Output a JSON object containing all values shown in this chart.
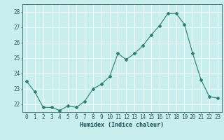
{
  "x": [
    0,
    1,
    2,
    3,
    4,
    5,
    6,
    7,
    8,
    9,
    10,
    11,
    12,
    13,
    14,
    15,
    16,
    17,
    18,
    19,
    20,
    21,
    22,
    23
  ],
  "y": [
    23.5,
    22.8,
    21.8,
    21.8,
    21.6,
    21.9,
    21.8,
    22.2,
    23.0,
    23.3,
    23.8,
    25.3,
    24.9,
    25.3,
    25.8,
    26.5,
    27.1,
    27.9,
    27.9,
    27.2,
    25.3,
    23.6,
    22.5,
    22.4
  ],
  "line_color": "#2e7d6e",
  "marker": "D",
  "marker_size": 2,
  "bg_color": "#c8eeee",
  "grid_color": "#ffffff",
  "tick_color": "#2e5f5f",
  "xlabel": "Humidex (Indice chaleur)",
  "xlabel_color": "#1a4f4f",
  "ylim": [
    21.5,
    28.5
  ],
  "xlim": [
    -0.5,
    23.5
  ],
  "yticks": [
    22,
    23,
    24,
    25,
    26,
    27,
    28
  ],
  "xticks": [
    0,
    1,
    2,
    3,
    4,
    5,
    6,
    7,
    8,
    9,
    10,
    11,
    12,
    13,
    14,
    15,
    16,
    17,
    18,
    19,
    20,
    21,
    22,
    23
  ],
  "font_size_label": 6,
  "font_size_tick": 5.5
}
